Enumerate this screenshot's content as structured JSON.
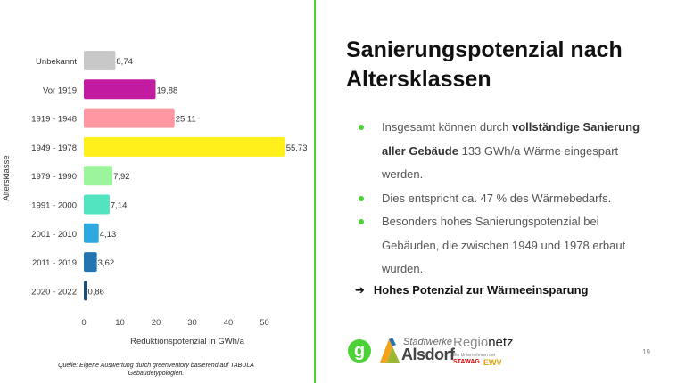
{
  "slide": {
    "title": "Sanierungspotenzial nach Altersklassen",
    "bullets": [
      {
        "pre": "Insgesamt können durch ",
        "bold": "vollständige Sanierung aller Gebäude",
        "post": " 133 GWh/a Wärme eingespart werden."
      },
      {
        "pre": "Dies entspricht ca. 47 % des Wärmebedarfs.",
        "bold": "",
        "post": ""
      },
      {
        "pre": "Besonders hohes Sanierungspotenzial bei Gebäuden, die zwischen 1949 und 1978 erbaut wurden.",
        "bold": "",
        "post": ""
      }
    ],
    "conclusion_arrow": "➔",
    "conclusion": "Hohes Potenzial zur Wärmeeinsparung",
    "source": "Quelle: Eigene Auswertung durch greenventory basierend auf TABULA Gebäudetypologien.",
    "page_number": "19",
    "accent_color": "#4cd137"
  },
  "logos": {
    "greenventory_letter": "g",
    "stadtwerke_line1": "Stadtwerke",
    "stadtwerke_line2": "Alsdorf",
    "regionetz_prefix": "Regio",
    "regionetz_suffix": "netz",
    "regionetz_sub": "Ein Unternehmen der",
    "stawag": "STAWAG",
    "ewv": "EWV"
  },
  "chart_data": {
    "type": "bar",
    "orientation": "horizontal",
    "categories": [
      "Unbekannt",
      "Vor 1919",
      "1919 - 1948",
      "1949 - 1978",
      "1979 - 1990",
      "1991 - 2000",
      "2001 - 2010",
      "2011 - 2019",
      "2020 - 2022"
    ],
    "values": [
      8.74,
      19.88,
      25.11,
      55.73,
      7.92,
      7.14,
      4.13,
      3.62,
      0.86
    ],
    "value_labels": [
      "8,74",
      "19,88",
      "25,11",
      "55,73",
      "7,92",
      "7,14",
      "4,13",
      "3,62",
      "0,86"
    ],
    "colors": [
      "#c8c8c8",
      "#c21aa0",
      "#ff97a3",
      "#fff01c",
      "#9cf59a",
      "#52e3c0",
      "#2ea9e0",
      "#2374b0",
      "#1d4e7a"
    ],
    "xlabel": "Reduktionspotenzial in GWh/a",
    "ylabel": "Altersklasse",
    "xlim": [
      0,
      57
    ],
    "xticks": [
      0,
      10,
      20,
      30,
      40,
      50
    ],
    "grid": false,
    "legend": "none"
  }
}
